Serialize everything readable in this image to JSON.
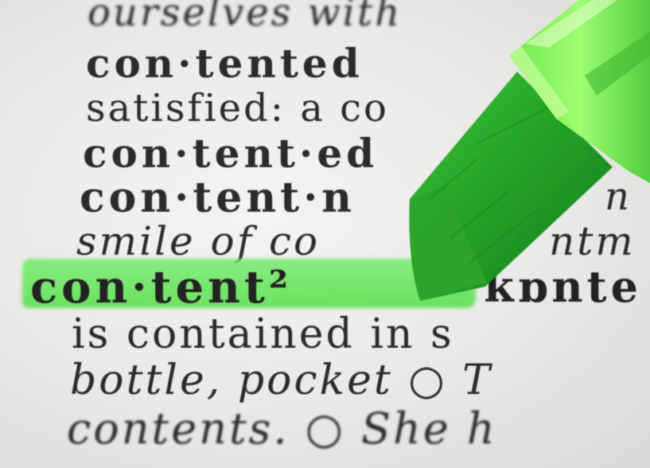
{
  "dictionary": {
    "lines": [
      {
        "id": "l1",
        "text": "ourselves with"
      },
      {
        "id": "l2",
        "text": "con·tented"
      },
      {
        "id": "l3",
        "text": "satisfied: a co"
      },
      {
        "id": "l4",
        "text": "con·tent·ed"
      },
      {
        "id": "l5",
        "text": "con·tent·n"
      },
      {
        "id": "l5b",
        "text": "n"
      },
      {
        "id": "l6",
        "text": "smile of co"
      },
      {
        "id": "l6b",
        "text": "ntm"
      },
      {
        "id": "l7",
        "text": "con·tent²"
      },
      {
        "id": "l7b",
        "text": "ˈkɒnte"
      },
      {
        "id": "l8",
        "text": "is contained in s"
      },
      {
        "id": "l9",
        "text": "bottle, pocket ○ T"
      },
      {
        "id": "l10",
        "text": "contents. ○ She h"
      }
    ]
  },
  "colors": {
    "highlight": "#6fe360",
    "marker_tip": "#2faa2c",
    "marker_body": "#7dff5a",
    "ink": "#2b2b2b"
  }
}
